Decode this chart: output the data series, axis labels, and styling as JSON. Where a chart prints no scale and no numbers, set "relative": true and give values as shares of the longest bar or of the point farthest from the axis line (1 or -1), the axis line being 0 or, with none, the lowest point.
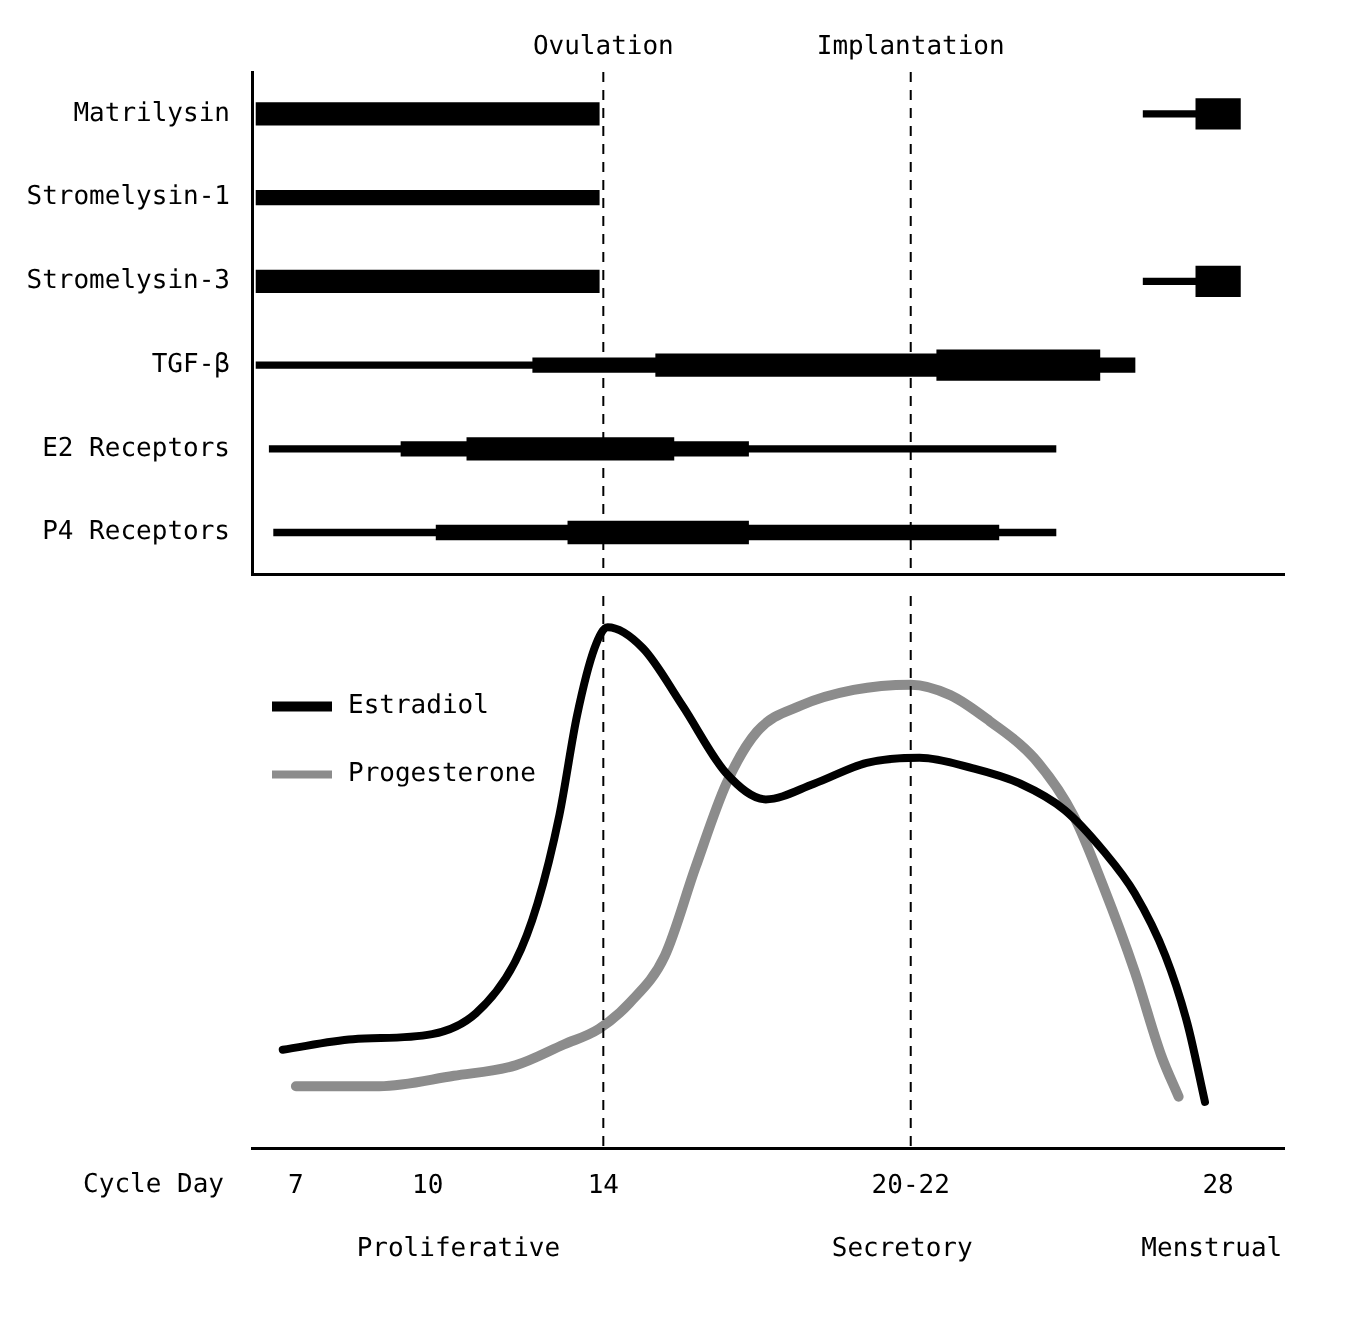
{
  "chart_data": [
    {
      "type": "bar",
      "orientation": "horizontal",
      "categories": [
        "Matrilysin",
        "Stromelysin-1",
        "Stromelysin-3",
        "TGF-β",
        "E2 Receptors",
        "P4 Receptors"
      ],
      "xlim": [
        6,
        29.5
      ],
      "tick_labels": "y",
      "grid": false,
      "ref_lines": [
        {
          "axis": "x",
          "value": 14,
          "label": "Ovulation",
          "line_style": "dashed"
        },
        {
          "axis": "x",
          "value": 21,
          "label": "Implantation",
          "line_style": "dashed"
        }
      ],
      "series": [
        {
          "color": "#000000",
          "base": [
            26.3,
            null,
            26.3,
            6.1,
            6.4,
            6.5
          ],
          "values": [
            1.2,
            null,
            1.2,
            6.3,
            3.0,
            3.7
          ]
        },
        {
          "color": "#000000",
          "base": [
            null,
            6.1,
            null,
            12.4,
            9.4,
            10.2
          ],
          "values": [
            null,
            7.8,
            null,
            2.8,
            1.5,
            3.0
          ]
        },
        {
          "color": "#000000",
          "base": [
            6.1,
            null,
            6.1,
            15.2,
            10.9,
            13.2
          ],
          "values": [
            7.8,
            null,
            7.8,
            6.4,
            4.7,
            4.1
          ]
        },
        {
          "color": "#000000",
          "base": [
            27.5,
            null,
            27.5,
            21.6,
            null,
            null
          ],
          "values": [
            1.0,
            null,
            1.0,
            3.7,
            null,
            null
          ]
        },
        {
          "color": "#000000",
          "base": [
            null,
            null,
            null,
            25.3,
            15.6,
            17.3
          ],
          "values": [
            null,
            null,
            null,
            0.8,
            1.7,
            5.7
          ]
        },
        {
          "color": "#000000",
          "base": [
            null,
            null,
            null,
            null,
            17.3,
            23.0
          ],
          "values": [
            null,
            null,
            null,
            null,
            7.0,
            1.3
          ]
        }
      ]
    },
    {
      "type": "line",
      "relative": true,
      "xlim": [
        6,
        29.5
      ],
      "xticks": [
        7,
        10,
        14,
        {
          "value": 21,
          "label": "20-22"
        },
        28
      ],
      "xlabel": "Cycle Day",
      "legend": "left",
      "marker": "none",
      "grid": false,
      "ref_lines": [
        {
          "axis": "x",
          "value": 14,
          "line_style": "dashed"
        },
        {
          "axis": "x",
          "value": 21,
          "line_style": "dashed"
        }
      ],
      "annotations": [
        "Proliferative",
        "Secretory",
        "Menstrual"
      ],
      "series": [
        {
          "name": "Estradiol",
          "color": "#000000",
          "x": [
            6.7,
            8.3,
            10.1,
            11.1,
            12.0,
            12.5,
            13.0,
            13.4,
            13.8,
            14.1,
            14.9,
            15.8,
            16.8,
            17.7,
            18.8,
            20.0,
            21.2,
            22.4,
            23.5,
            24.5,
            25.4,
            26.1,
            26.8,
            27.3,
            27.7
          ],
          "values": [
            0.19,
            0.21,
            0.22,
            0.26,
            0.36,
            0.47,
            0.64,
            0.83,
            0.96,
            1,
            0.96,
            0.85,
            0.72,
            0.67,
            0.7,
            0.74,
            0.75,
            0.73,
            0.7,
            0.65,
            0.57,
            0.49,
            0.37,
            0.24,
            0.09
          ]
        },
        {
          "name": "Progesterone",
          "color": "#8c8c8c",
          "x": [
            7.0,
            8.9,
            10.6,
            12.0,
            13.1,
            13.9,
            14.6,
            15.4,
            16.1,
            16.8,
            17.5,
            18.5,
            19.7,
            21.0,
            21.9,
            22.8,
            23.8,
            24.7,
            25.4,
            26.1,
            26.7,
            27.1
          ],
          "values": [
            0.12,
            0.12,
            0.14,
            0.16,
            0.2,
            0.23,
            0.28,
            0.37,
            0.54,
            0.7,
            0.8,
            0.85,
            0.88,
            0.89,
            0.87,
            0.82,
            0.75,
            0.64,
            0.5,
            0.34,
            0.18,
            0.1
          ]
        }
      ]
    }
  ]
}
